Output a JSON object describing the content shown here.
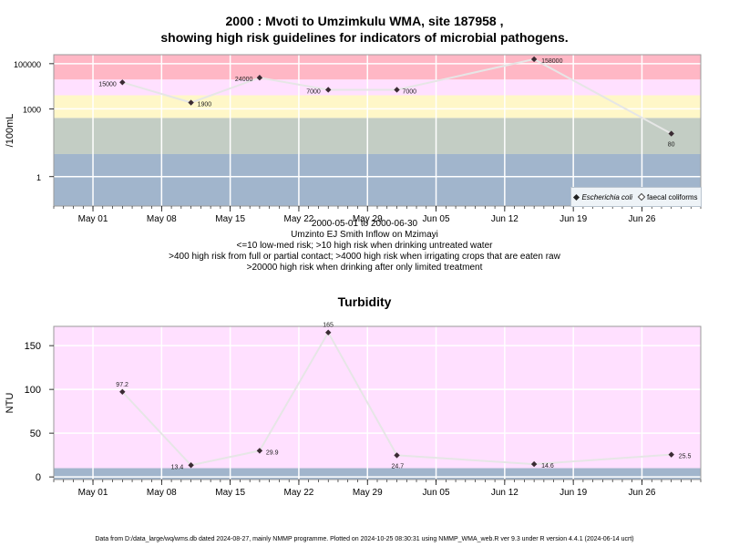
{
  "colors": {
    "band_red": "#ffb7c5",
    "band_pink": "#ffe0ff",
    "band_yellow": "#fff7c8",
    "band_sage": "#c3cdc4",
    "band_blue": "#a1b5cc",
    "line": "#e6e6e6",
    "grid": "#ffffff",
    "marker": "#3a2b33"
  },
  "chart1": {
    "title_line1": "2000 : Mvoti to Umzimkulu WMA, site 187958 ,",
    "title_line2": "showing high risk guidelines for indicators of microbial pathogens.",
    "ylabel": "/100mL",
    "caption_lines": [
      "2000-05-01 to 2000-06-30",
      "Umzinto EJ Smith Inflow on Mzimayi",
      "<=10 low-med risk; >10 high risk when drinking untreated water",
      ">400 high risk from full or partial contact; >4000 high risk when irrigating crops that are eaten raw",
      ">20000 high risk when drinking after only limited treatment"
    ],
    "legend": [
      {
        "label": "Escherichia coli",
        "marker": "filled-diamond",
        "italic": true
      },
      {
        "label": "faecal coliforms",
        "marker": "open-diamond",
        "italic": false
      }
    ]
  },
  "chart2": {
    "title": "Turbidity",
    "ylabel": "NTU"
  },
  "footer": "Data from D:/data_large/wq/wms.db dated 2024-08-27, mainly NMMP programme. Plotted on 2024-10-25 08:30:31 using NMMP_WMA_web.R ver 9.3 under R version 4.4.1 (2024-06-14 ucrt)",
  "chart_data": [
    {
      "type": "line",
      "scale": "log",
      "title": "2000 : Mvoti to Umzimkulu WMA, site 187958 , showing high risk guidelines for indicators of microbial pathogens.",
      "ylabel": "/100mL",
      "xlim": [
        "2000-04-27",
        "2000-07-02"
      ],
      "ylim": [
        0.05,
        250000
      ],
      "x_ticks": [
        "2000-05-01",
        "2000-05-08",
        "2000-05-15",
        "2000-05-22",
        "2000-05-29",
        "2000-06-05",
        "2000-06-12",
        "2000-06-19",
        "2000-06-26"
      ],
      "x_tick_labels": [
        "May 01",
        "May 08",
        "May 15",
        "May 22",
        "May 29",
        "Jun 05",
        "Jun 12",
        "Jun 19",
        "Jun 26"
      ],
      "y_ticks": [
        1,
        1000,
        100000
      ],
      "y_tick_labels": [
        "1",
        "1000",
        "100000"
      ],
      "bands": [
        {
          "from": 0.05,
          "to": 10,
          "color": "#a1b5cc"
        },
        {
          "from": 10,
          "to": 400,
          "color": "#c3cdc4"
        },
        {
          "from": 400,
          "to": 4000,
          "color": "#fff7c8"
        },
        {
          "from": 4000,
          "to": 20000,
          "color": "#ffe0ff"
        },
        {
          "from": 20000,
          "to": 250000,
          "color": "#ffb7c5"
        }
      ],
      "series": [
        {
          "name": "Escherichia coli",
          "x": [
            "2000-05-04",
            "2000-05-11",
            "2000-05-18",
            "2000-05-25",
            "2000-06-01",
            "2000-06-15",
            "2000-06-29"
          ],
          "values": [
            15000,
            1900,
            24000,
            7000,
            7000,
            158000,
            80
          ],
          "labels": [
            "15000",
            "1900",
            "24000",
            "7000",
            "7000",
            "158000",
            "80"
          ]
        }
      ],
      "legend_position": "bottom-right"
    },
    {
      "type": "line",
      "scale": "linear",
      "title": "Turbidity",
      "ylabel": "NTU",
      "xlim": [
        "2000-04-27",
        "2000-07-02"
      ],
      "ylim": [
        -3,
        172
      ],
      "x_ticks": [
        "2000-05-01",
        "2000-05-08",
        "2000-05-15",
        "2000-05-22",
        "2000-05-29",
        "2000-06-05",
        "2000-06-12",
        "2000-06-19",
        "2000-06-26"
      ],
      "x_tick_labels": [
        "May 01",
        "May 08",
        "May 15",
        "May 22",
        "May 29",
        "Jun 05",
        "Jun 12",
        "Jun 19",
        "Jun 26"
      ],
      "y_ticks": [
        0,
        50,
        100,
        150
      ],
      "y_tick_labels": [
        "0",
        "50",
        "100",
        "150"
      ],
      "bands": [
        {
          "from": -3,
          "to": 10,
          "color": "#a1b5cc"
        },
        {
          "from": 10,
          "to": 172,
          "color": "#ffe0ff"
        }
      ],
      "series": [
        {
          "name": "",
          "x": [
            "2000-05-04",
            "2000-05-11",
            "2000-05-18",
            "2000-05-25",
            "2000-06-01",
            "2000-06-15",
            "2000-06-29"
          ],
          "values": [
            97.2,
            13.4,
            29.9,
            165,
            24.7,
            14.6,
            25.5
          ],
          "labels": [
            "97.2",
            "13.4",
            "29.9",
            "165",
            "24.7",
            "14.6",
            "25.5"
          ]
        }
      ]
    }
  ]
}
